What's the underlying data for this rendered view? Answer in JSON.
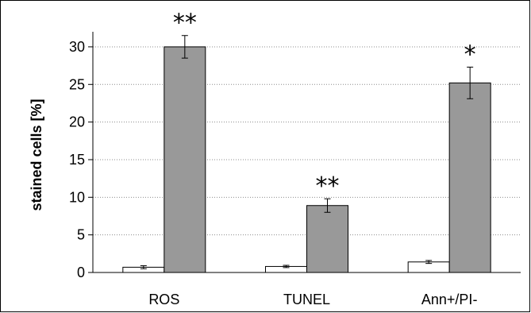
{
  "chart_data": {
    "type": "bar",
    "title": "",
    "xlabel": "",
    "ylabel": "stained cells [%]",
    "ylim": [
      0,
      32
    ],
    "yticks": [
      0,
      5,
      10,
      15,
      20,
      25,
      30
    ],
    "ytick_labels": [
      "0",
      "5",
      "10",
      "15",
      "20",
      "25",
      "30"
    ],
    "grid": "horizontal-dotted",
    "legend": "none",
    "categories": [
      "ROS",
      "TUNEL",
      "Ann+/PI-"
    ],
    "series": [
      {
        "color": "#ffffff",
        "values": [
          0.7,
          0.8,
          1.4
        ],
        "errors": [
          0.2,
          0.15,
          0.2
        ]
      },
      {
        "color": "#999999",
        "values": [
          30.0,
          8.9,
          25.2
        ],
        "errors": [
          1.5,
          0.9,
          2.1
        ]
      }
    ],
    "annotations": [
      "**",
      "**",
      "*"
    ]
  }
}
